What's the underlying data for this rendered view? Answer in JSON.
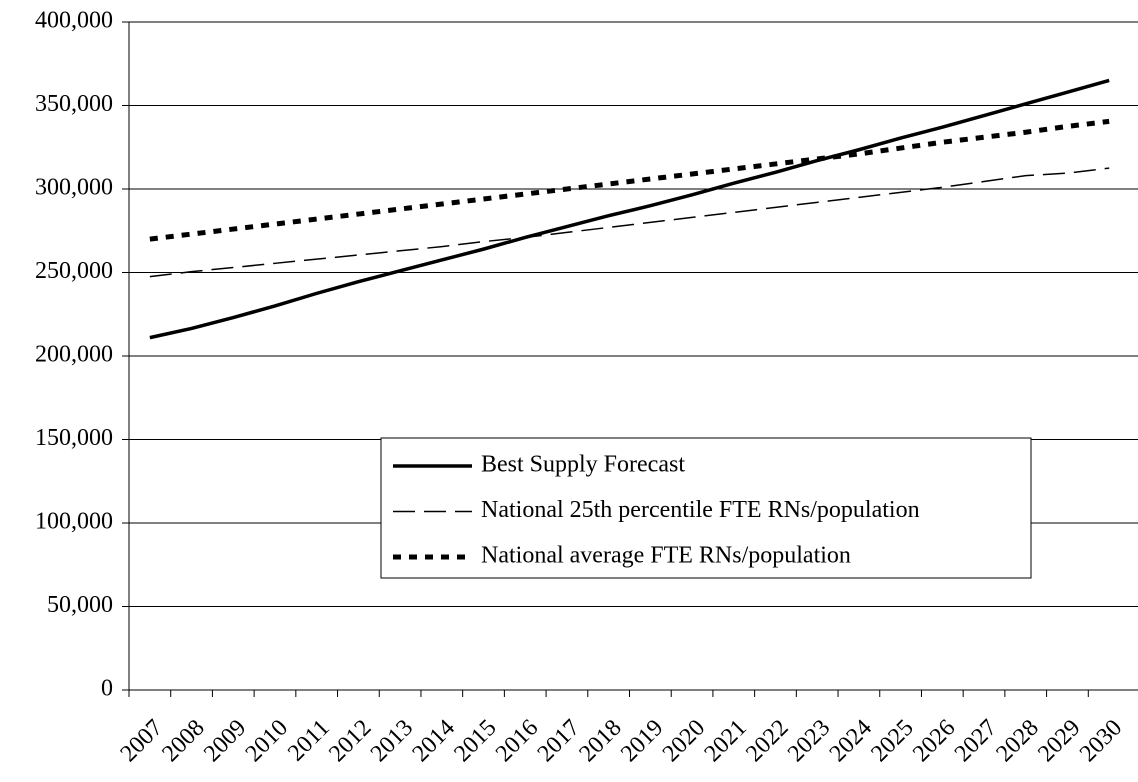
{
  "chart_data": {
    "type": "line",
    "categories": [
      "2007",
      "2008",
      "2009",
      "2010",
      "2011",
      "2012",
      "2013",
      "2014",
      "2015",
      "2016",
      "2017",
      "2018",
      "2019",
      "2020",
      "2021",
      "2022",
      "2023",
      "2024",
      "2025",
      "2026",
      "2027",
      "2028",
      "2029",
      "2030"
    ],
    "series": [
      {
        "name": "Best Supply Forecast",
        "color": "#000000",
        "style": "solid",
        "values": [
          211000,
          216500,
          223000,
          230000,
          237500,
          244500,
          251000,
          257500,
          264000,
          271000,
          277500,
          284000,
          290000,
          296500,
          303500,
          310000,
          317000,
          323500,
          330500,
          337000,
          344000,
          351000,
          358000,
          365000
        ]
      },
      {
        "name": "National 25th percentile FTE RNs/population",
        "color": "#000000",
        "style": "dashed",
        "values": [
          247500,
          250500,
          253000,
          255500,
          258000,
          260500,
          263000,
          265500,
          268500,
          271000,
          274000,
          277000,
          280000,
          283000,
          286000,
          289000,
          292000,
          295000,
          298000,
          301000,
          304500,
          308000,
          309500,
          312500
        ]
      },
      {
        "name": "National average FTE RNs/population",
        "color": "#000000",
        "style": "dotted",
        "values": [
          270000,
          273000,
          276000,
          279000,
          282000,
          285000,
          288000,
          291000,
          294000,
          297000,
          300000,
          303000,
          306000,
          309000,
          312000,
          315000,
          318000,
          321000,
          324500,
          328000,
          331000,
          334000,
          337500,
          340500
        ]
      }
    ],
    "ylim": [
      0,
      400000
    ],
    "yticks": [
      0,
      {
        "value": 50000,
        "label": "50,000"
      },
      {
        "value": 100000,
        "label": "100,000"
      },
      {
        "value": 150000,
        "label": "150,000"
      },
      {
        "value": 200000,
        "label": "200,000"
      },
      {
        "value": 250000,
        "label": "250,000"
      },
      {
        "value": 300000,
        "label": "300,000"
      },
      {
        "value": 350000,
        "label": "350,000"
      },
      {
        "value": 400000,
        "label": "400,000"
      }
    ],
    "grid": true
  }
}
